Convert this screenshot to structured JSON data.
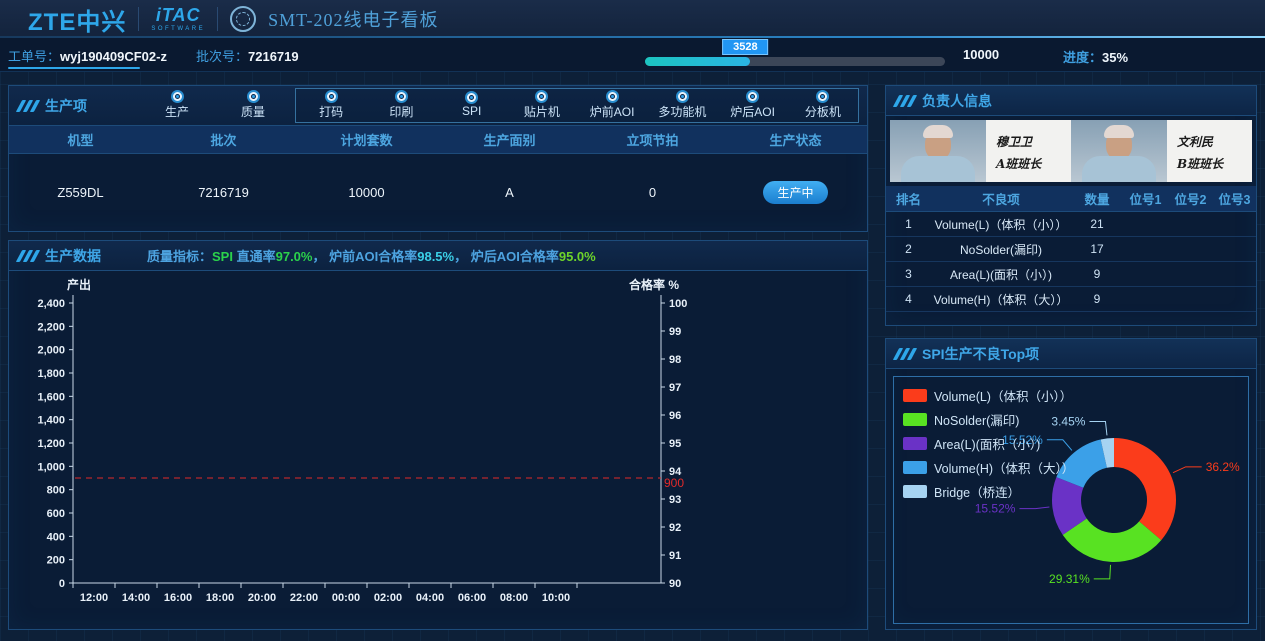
{
  "header": {
    "brand_zte": "ZTE中兴",
    "brand_itac": "iTAC",
    "brand_itac_sub": "SOFTWARE",
    "title": "SMT-202线电子看板"
  },
  "infobar": {
    "work_order_label": "工单号：",
    "work_order_value": "wyj190409CF02-z",
    "batch_label": "批次号：",
    "batch_value": "7216719",
    "progress_current": "3528",
    "progress_total": "10000",
    "progress_label": "进度：",
    "progress_value": "35%",
    "progress_percent": 35,
    "progress_fill_color": "#1cc4c0"
  },
  "production_items": {
    "title": "生产项",
    "view_items": [
      "生产",
      "质量"
    ],
    "machine_items": [
      "打码",
      "印刷",
      "SPI",
      "贴片机",
      "炉前AOI",
      "多功能机",
      "炉后AOI",
      "分板机"
    ]
  },
  "order_table": {
    "headers": [
      "机型",
      "批次",
      "计划套数",
      "生产面别",
      "立项节拍",
      "生产状态"
    ],
    "row_values": [
      "Z559DL",
      "7216719",
      "10000",
      "A",
      "0"
    ],
    "status": "生产中",
    "status_color": "#2b9ce8"
  },
  "production_data": {
    "title": "生产数据",
    "quality_segments": [
      {
        "text": "质量指标：",
        "color": "#4da3e0"
      },
      {
        "text": "SPI ",
        "color": "#2bd24b"
      },
      {
        "text": "直通率",
        "color": "#4da3e0"
      },
      {
        "text": "97.0%",
        "color": "#2bd24b"
      },
      {
        "text": "， ",
        "color": "#4da3e0"
      },
      {
        "text": "炉前AOI合格率",
        "color": "#4da3e0"
      },
      {
        "text": "98.5%",
        "color": "#3bcfe6"
      },
      {
        "text": "， ",
        "color": "#4da3e0"
      },
      {
        "text": "炉后AOI合格率",
        "color": "#4da3e0"
      },
      {
        "text": "95.0%",
        "color": "#6ed42a"
      }
    ]
  },
  "supervisors": {
    "title": "负责人信息",
    "people": [
      {
        "name": "穆卫卫",
        "role": "A班班长"
      },
      {
        "name": "文利民",
        "role": "B班班长"
      }
    ]
  },
  "defect_table": {
    "headers": [
      "排名",
      "不良项",
      "数量",
      "位号1",
      "位号2",
      "位号3"
    ],
    "rows": [
      [
        "1",
        "Volume(L)（体积（小））",
        "21",
        "",
        "",
        ""
      ],
      [
        "2",
        "NoSolder(漏印)",
        "17",
        "",
        "",
        ""
      ],
      [
        "3",
        "Area(L)(面积（小）)",
        "9",
        "",
        "",
        ""
      ],
      [
        "4",
        "Volume(H)（体积（大））",
        "9",
        "",
        "",
        ""
      ]
    ]
  },
  "spi_top": {
    "title": "SPI生产不良Top项"
  },
  "chart_data": [
    {
      "type": "line",
      "title": "生产数据",
      "x_categories": [
        "12:00",
        "14:00",
        "16:00",
        "18:00",
        "20:00",
        "22:00",
        "00:00",
        "02:00",
        "04:00",
        "06:00",
        "08:00",
        "10:00"
      ],
      "left_axis": {
        "label": "产出",
        "min": 0,
        "max": 2400,
        "step": 200
      },
      "right_axis": {
        "label": "合格率 %",
        "min": 90,
        "max": 100,
        "step": 1
      },
      "target_line": {
        "value": 900,
        "label": "900",
        "color": "#e02a2a",
        "style": "dashed"
      },
      "series": [],
      "grid": false,
      "axis_color": "#c9d9e8",
      "label_color": "#e9f1f9"
    },
    {
      "type": "pie",
      "donut": true,
      "title": "SPI生产不良Top项",
      "legend_position": "top-left",
      "slices": [
        {
          "label": "Volume(L)（体积（小））",
          "percent": 36.2,
          "display": "36.2%",
          "color": "#fb3c1b"
        },
        {
          "label": "NoSolder(漏印)",
          "percent": 29.31,
          "display": "29.31%",
          "color": "#58e222"
        },
        {
          "label": "Area(L)(面积（小）)",
          "percent": 15.52,
          "display": "15.52%",
          "color": "#6a32c6"
        },
        {
          "label": "Volume(H)（体积（大））",
          "percent": 15.52,
          "display": "15.52%",
          "color": "#3ba0e8"
        },
        {
          "label": "Bridge（桥连）",
          "percent": 3.45,
          "display": "3.45%",
          "color": "#a6d3f2"
        }
      ]
    }
  ]
}
